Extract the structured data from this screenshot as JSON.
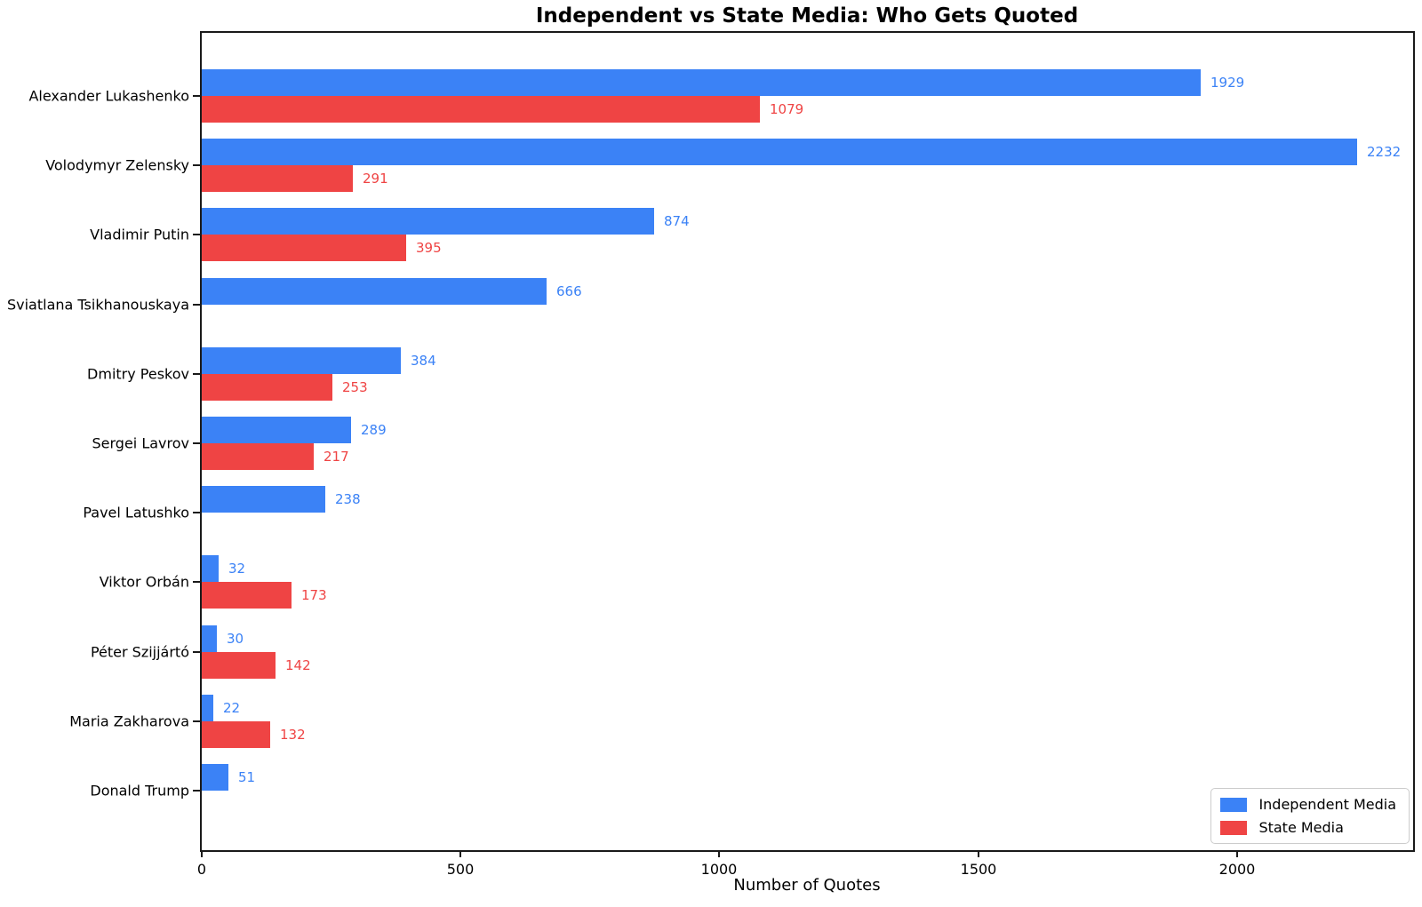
{
  "chart_data": {
    "type": "bar",
    "orientation": "horizontal",
    "title": "Independent vs State Media: Who Gets Quoted",
    "xlabel": "Number of Quotes",
    "ylabel": "",
    "categories": [
      "Alexander Lukashenko",
      "Volodymyr Zelensky",
      "Vladimir Putin",
      "Sviatlana Tsikhanouskaya",
      "Dmitry Peskov",
      "Sergei Lavrov",
      "Pavel Latushko",
      "Viktor Orbán",
      "Péter Szijjártó",
      "Maria Zakharova",
      "Donald Trump"
    ],
    "series": [
      {
        "name": "Independent Media",
        "color": "#3b82f6",
        "values": [
          1929,
          2232,
          874,
          666,
          384,
          289,
          238,
          32,
          30,
          22,
          51
        ]
      },
      {
        "name": "State Media",
        "color": "#ef4444",
        "values": [
          1079,
          291,
          395,
          0,
          253,
          217,
          0,
          173,
          142,
          132,
          0
        ]
      }
    ],
    "xlim": [
      0,
      2340
    ],
    "xticks": [
      0,
      500,
      1000,
      1500,
      2000
    ],
    "grid": false,
    "legend_position": "lower right",
    "value_labels_shown": true,
    "spine_color": "#1a1a1a"
  }
}
